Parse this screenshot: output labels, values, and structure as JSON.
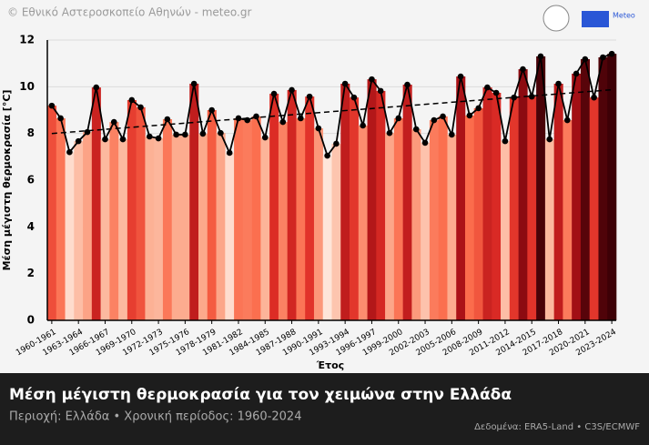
{
  "header": {
    "copyright": "© Εθνικό Αστεροσκοπείο Αθηνών - meteo.gr",
    "logo": "Meteo"
  },
  "footer": {
    "title": "Μέση μέγιστη θερμοκρασία για τον χειμώνα στην Ελλάδα",
    "subtitle": "Περιοχή: Ελλάδα • Χρονική περίοδος: 1960-2024",
    "source": "Δεδομένα: ERA5-Land • C3S/ECMWF"
  },
  "chart_data": {
    "type": "bar",
    "xlabel": "Έτος",
    "ylabel": "Μέση μέγιστη θερμοκρασία [°C]",
    "categories": [
      "1960-1961",
      null,
      null,
      "1963-1964",
      null,
      null,
      "1966-1967",
      null,
      null,
      "1969-1970",
      null,
      null,
      "1972-1973",
      null,
      null,
      "1975-1976",
      null,
      null,
      "1978-1979",
      null,
      null,
      "1981-1982",
      null,
      null,
      "1984-1985",
      null,
      null,
      "1987-1988",
      null,
      null,
      "1990-1991",
      null,
      null,
      "1993-1994",
      null,
      null,
      "1996-1997",
      null,
      null,
      "1999-2000",
      null,
      null,
      "2002-2003",
      null,
      null,
      "2005-2006",
      null,
      null,
      "2008-2009",
      null,
      null,
      "2011-2012",
      null,
      null,
      "2014-2015",
      null,
      null,
      "2017-2018",
      null,
      null,
      "2020-2021",
      null,
      null,
      "2023-2024"
    ],
    "values": [
      9.19,
      8.65,
      7.2,
      7.67,
      8.06,
      9.97,
      7.75,
      8.49,
      7.75,
      9.43,
      9.12,
      7.87,
      7.79,
      8.61,
      7.95,
      7.95,
      10.13,
      7.99,
      9.0,
      8.02,
      7.17,
      8.65,
      8.57,
      8.73,
      7.83,
      9.7,
      8.49,
      9.86,
      8.65,
      9.58,
      8.22,
      7.05,
      7.56,
      10.13,
      9.54,
      8.34,
      10.32,
      9.82,
      8.02,
      8.65,
      10.09,
      8.18,
      7.6,
      8.57,
      8.73,
      7.95,
      10.44,
      8.77,
      9.08,
      9.97,
      9.74,
      7.67,
      9.54,
      10.75,
      9.58,
      11.3,
      7.75,
      10.13,
      8.57,
      10.56,
      11.18,
      9.54,
      11.26,
      11.41
    ],
    "colormap": [
      "#fee5d9",
      "#fcae91",
      "#fb6a4a",
      "#de2d26",
      "#a50f15",
      "#3d0006"
    ],
    "line_color": "#000000",
    "trendline": true,
    "ylim": [
      0,
      12
    ],
    "yticks": [
      0,
      2,
      4,
      6,
      8,
      10,
      12
    ],
    "grid": true
  }
}
